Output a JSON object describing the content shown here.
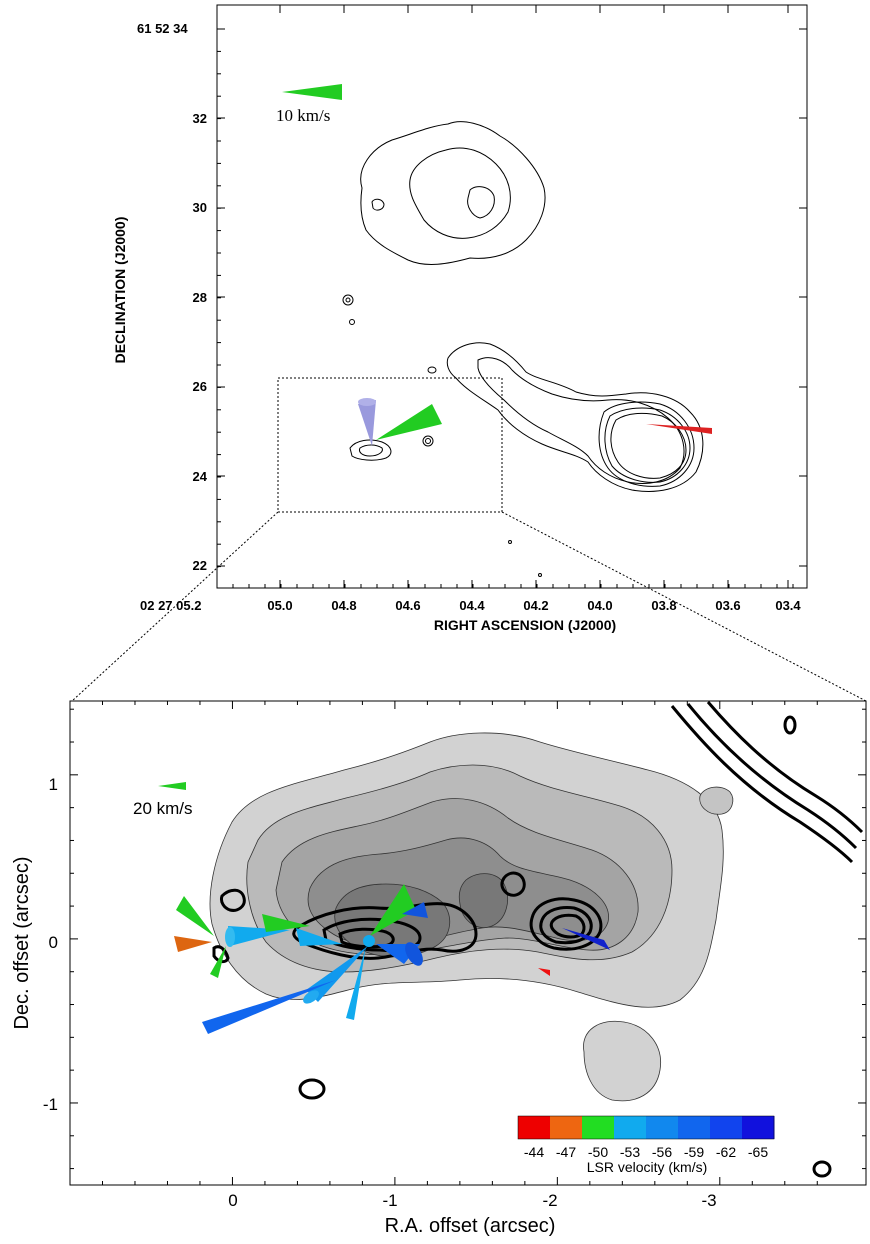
{
  "chart_data": [
    {
      "type": "contour",
      "xlabel": "RIGHT ASCENSION (J2000)",
      "ylabel": "DECLINATION (J2000)",
      "x_ticks": [
        "02 27 05.2",
        "05.0",
        "04.8",
        "04.6",
        "04.4",
        "04.2",
        "04.0",
        "03.8",
        "03.6",
        "03.4"
      ],
      "y_ticks": [
        "61 52 34",
        "32",
        "30",
        "28",
        "26",
        "24",
        "22"
      ],
      "scale_arrow": {
        "label": "10 km/s",
        "color": "#22cc22"
      },
      "vectors": [
        {
          "color": "#22cc22",
          "ra": "04.67",
          "dec": "24.7"
        },
        {
          "color": "#9999dd",
          "ra": "04.69",
          "dec": "24.7"
        },
        {
          "color": "#dd2222",
          "ra": "03.80",
          "dec": "25.1"
        }
      ]
    },
    {
      "type": "contour",
      "xlabel": "R.A. offset (arcsec)",
      "ylabel": "Dec. offset (arcsec)",
      "x_ticks": [
        "0",
        "-1",
        "-2",
        "-3"
      ],
      "y_ticks": [
        "1",
        "0",
        "-1"
      ],
      "xlim": [
        1.0,
        -3.9
      ],
      "ylim": [
        -1.5,
        1.45
      ],
      "scale_arrow": {
        "label": "20 km/s",
        "color": "#22cc22"
      },
      "colorbar": {
        "label": "LSR velocity (km/s)",
        "ticks": [
          "-44",
          "-47",
          "-50",
          "-53",
          "-56",
          "-59",
          "-62",
          "-65"
        ],
        "colors": [
          "#ee0000",
          "#ee6611",
          "#22dd22",
          "#11aaee",
          "#1188ee",
          "#1166ee",
          "#1144ee",
          "#1111dd"
        ]
      }
    }
  ]
}
